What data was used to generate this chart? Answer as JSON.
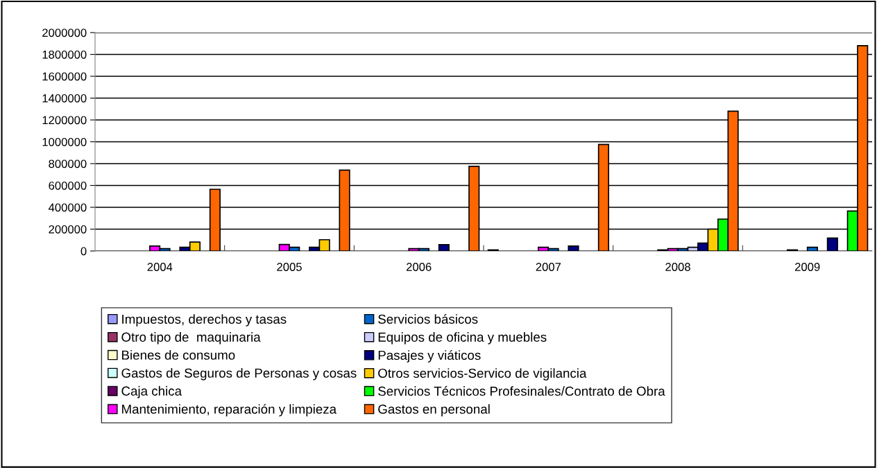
{
  "chart_data": {
    "type": "bar",
    "categories": [
      "2004",
      "2005",
      "2006",
      "2007",
      "2008",
      "2009"
    ],
    "ylim": [
      0,
      2000000
    ],
    "yticks": [
      0,
      200000,
      400000,
      600000,
      800000,
      1000000,
      1200000,
      1400000,
      1600000,
      1800000,
      2000000
    ],
    "grid": "y",
    "legend": "bottom",
    "series": [
      {
        "name": "Impuestos, derechos y tasas",
        "color": "#9999ff",
        "values": [
          null,
          null,
          null,
          10000,
          null,
          null
        ]
      },
      {
        "name": "Otro tipo de  maquinaria",
        "color": "#993366",
        "values": [
          null,
          null,
          null,
          null,
          null,
          null
        ]
      },
      {
        "name": "Bienes de consumo",
        "color": "#ffffcc",
        "values": [
          null,
          null,
          null,
          null,
          null,
          null
        ]
      },
      {
        "name": "Gastos de Seguros de Personas y cosas",
        "color": "#ccffff",
        "values": [
          null,
          null,
          null,
          null,
          null,
          null
        ]
      },
      {
        "name": "Caja chica",
        "color": "#660066",
        "values": [
          null,
          null,
          null,
          null,
          10000,
          10000
        ]
      },
      {
        "name": "Mantenimiento, reparación y limpieza",
        "color": "#ff00ff",
        "values": [
          45000,
          60000,
          21000,
          34000,
          21000,
          null
        ]
      },
      {
        "name": "Servicios básicos",
        "color": "#0066cc",
        "values": [
          21000,
          34000,
          21000,
          21000,
          21000,
          34000
        ]
      },
      {
        "name": "Equipos de oficina y muebles",
        "color": "#ccccff",
        "values": [
          null,
          null,
          null,
          null,
          34000,
          null
        ]
      },
      {
        "name": "Pasajes y viáticos",
        "color": "#000080",
        "values": [
          34000,
          34000,
          58000,
          45000,
          73000,
          118000
        ]
      },
      {
        "name": "Otros servicios-Servico de vigilancia",
        "color": "#ffcc00",
        "values": [
          82000,
          103000,
          null,
          null,
          200000,
          null
        ]
      },
      {
        "name": "Servicios Técnicos Profesinales/Contrato de Obra",
        "color": "#00ff00",
        "values": [
          null,
          null,
          null,
          null,
          292000,
          366000
        ]
      },
      {
        "name": "Gastos en personal",
        "color": "#ff6600",
        "values": [
          565000,
          740000,
          775000,
          975000,
          1280000,
          1880000
        ]
      }
    ]
  }
}
